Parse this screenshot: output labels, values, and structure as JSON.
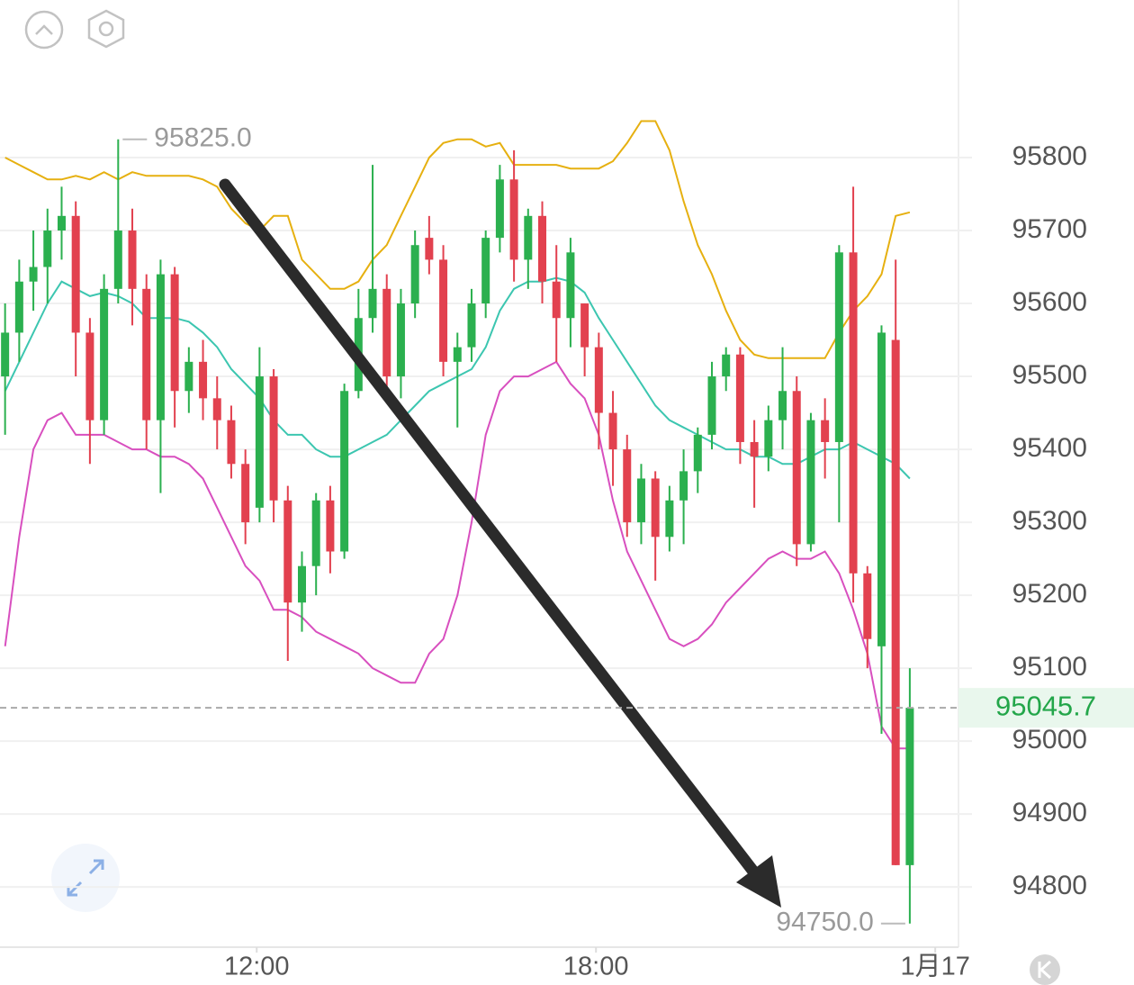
{
  "chart_data": {
    "type": "candlestick",
    "x": [
      7.55,
      7.8,
      8.05,
      8.3,
      8.55,
      8.8,
      9.05,
      9.3,
      9.55,
      9.8,
      10.05,
      10.3,
      10.55,
      10.8,
      11.05,
      11.3,
      11.55,
      11.8,
      12.05,
      12.3,
      12.55,
      12.8,
      13.05,
      13.3,
      13.55,
      13.8,
      14.05,
      14.3,
      14.55,
      14.8,
      15.05,
      15.3,
      15.55,
      15.8,
      16.05,
      16.3,
      16.55,
      16.8,
      17.05,
      17.3,
      17.55,
      17.8,
      18.05,
      18.3,
      18.55,
      18.8,
      19.05,
      19.3,
      19.55,
      19.8,
      20.05,
      20.3,
      20.55,
      20.8,
      21.05,
      21.3,
      21.55,
      21.8,
      22.05,
      22.3,
      22.55,
      22.8,
      23.05,
      23.3,
      23.55
    ],
    "open": [
      95500,
      95560,
      95630,
      95650,
      95700,
      95720,
      95560,
      95440,
      95620,
      95700,
      95620,
      95440,
      95640,
      95480,
      95520,
      95470,
      95440,
      95380,
      95320,
      95500,
      95330,
      95190,
      95240,
      95330,
      95260,
      95480,
      95580,
      95620,
      95500,
      95600,
      95690,
      95660,
      95520,
      95540,
      95600,
      95690,
      95770,
      95660,
      95720,
      95630,
      95580,
      95600,
      95540,
      95450,
      95400,
      95300,
      95360,
      95280,
      95330,
      95370,
      95420,
      95500,
      95530,
      95410,
      95390,
      95440,
      95480,
      95270,
      95440,
      95410,
      95670,
      95230,
      95130,
      95550,
      94830
    ],
    "high": [
      95600,
      95660,
      95700,
      95730,
      95760,
      95740,
      95580,
      95640,
      95825,
      95730,
      95640,
      95660,
      95650,
      95540,
      95550,
      95500,
      95460,
      95400,
      95540,
      95510,
      95350,
      95260,
      95340,
      95350,
      95490,
      95620,
      95790,
      95640,
      95620,
      95700,
      95720,
      95680,
      95560,
      95620,
      95700,
      95790,
      95810,
      95730,
      95740,
      95680,
      95690,
      95600,
      95560,
      95480,
      95420,
      95380,
      95370,
      95350,
      95400,
      95430,
      95520,
      95540,
      95540,
      95440,
      95460,
      95540,
      95500,
      95450,
      95470,
      95680,
      95760,
      95240,
      95570,
      95660,
      95100
    ],
    "low": [
      95420,
      95520,
      95590,
      95600,
      95660,
      95500,
      95380,
      95420,
      95600,
      95570,
      95400,
      95340,
      95430,
      95450,
      95440,
      95400,
      95360,
      95270,
      95300,
      95300,
      95110,
      95150,
      95200,
      95230,
      95250,
      95470,
      95560,
      95480,
      95470,
      95580,
      95640,
      95500,
      95430,
      95520,
      95580,
      95670,
      95630,
      95620,
      95600,
      95520,
      95540,
      95500,
      95400,
      95350,
      95280,
      95270,
      95220,
      95260,
      95270,
      95340,
      95400,
      95480,
      95380,
      95320,
      95370,
      95400,
      95240,
      95260,
      95360,
      95300,
      95190,
      95100,
      95010,
      94830,
      94750
    ],
    "close": [
      95560,
      95630,
      95650,
      95700,
      95720,
      95560,
      95440,
      95620,
      95700,
      95620,
      95440,
      95640,
      95480,
      95520,
      95470,
      95440,
      95380,
      95300,
      95500,
      95330,
      95190,
      95240,
      95330,
      95260,
      95480,
      95580,
      95620,
      95500,
      95600,
      95680,
      95660,
      95520,
      95540,
      95600,
      95690,
      95770,
      95660,
      95720,
      95630,
      95580,
      95670,
      95540,
      95450,
      95400,
      95300,
      95360,
      95280,
      95330,
      95370,
      95420,
      95500,
      95530,
      95410,
      95390,
      95440,
      95480,
      95270,
      95440,
      95410,
      95670,
      95230,
      95140,
      95560,
      94830,
      95045.7
    ],
    "up_color": "#2bb04f",
    "down_color": "#e2414f",
    "series": [
      {
        "color": "#e6b010",
        "values": [
          95800,
          95790,
          95780,
          95770,
          95770,
          95775,
          95770,
          95780,
          95770,
          95780,
          95775,
          95775,
          95775,
          95775,
          95770,
          95760,
          95730,
          95710,
          95700,
          95720,
          95720,
          95660,
          95640,
          95620,
          95620,
          95630,
          95660,
          95680,
          95720,
          95760,
          95800,
          95820,
          95825,
          95825,
          95815,
          95820,
          95790,
          95790,
          95790,
          95790,
          95785,
          95785,
          95785,
          95795,
          95820,
          95850,
          95850,
          95810,
          95740,
          95680,
          95640,
          95590,
          95550,
          95530,
          95525,
          95525,
          95525,
          95525,
          95525,
          95560,
          95590,
          95610,
          95640,
          95720,
          95725
        ]
      },
      {
        "color": "#3cc6b0",
        "values": [
          95480,
          95520,
          95560,
          95600,
          95630,
          95620,
          95610,
          95615,
          95610,
          95600,
          95580,
          95580,
          95580,
          95575,
          95560,
          95540,
          95510,
          95490,
          95470,
          95440,
          95420,
          95420,
          95400,
          95390,
          95390,
          95400,
          95410,
          95420,
          95440,
          95460,
          95480,
          95490,
          95500,
          95510,
          95540,
          95590,
          95620,
          95630,
          95630,
          95635,
          95630,
          95615,
          95580,
          95550,
          95520,
          95490,
          95460,
          95440,
          95430,
          95420,
          95410,
          95400,
          95400,
          95390,
          95390,
          95380,
          95380,
          95390,
          95400,
          95400,
          95410,
          95400,
          95390,
          95380,
          95360
        ]
      },
      {
        "color": "#d84fbf",
        "values": [
          95130,
          95280,
          95400,
          95440,
          95450,
          95420,
          95420,
          95420,
          95410,
          95400,
          95400,
          95390,
          95390,
          95380,
          95360,
          95320,
          95280,
          95240,
          95220,
          95180,
          95180,
          95170,
          95150,
          95140,
          95130,
          95120,
          95100,
          95090,
          95080,
          95080,
          95120,
          95140,
          95200,
          95300,
          95420,
          95480,
          95500,
          95500,
          95510,
          95520,
          95490,
          95470,
          95420,
          95330,
          95260,
          95220,
          95180,
          95140,
          95130,
          95140,
          95160,
          95190,
          95210,
          95230,
          95250,
          95260,
          95250,
          95250,
          95260,
          95230,
          95180,
          95120,
          95020,
          94990,
          94990
        ]
      }
    ],
    "xlim": [
      7.46,
      24.65
    ],
    "xticks": [
      {
        "value": 12,
        "label": "12:00"
      },
      {
        "value": 18,
        "label": "18:00"
      },
      {
        "value": 24,
        "label": "1月17"
      }
    ],
    "ylim": [
      94720,
      96016
    ],
    "yticks": [
      94800,
      94900,
      95000,
      95100,
      95200,
      95300,
      95400,
      95500,
      95600,
      95700,
      95800
    ],
    "grid": true,
    "last_price": 95045.7,
    "annotations": [
      {
        "value": 95825,
        "label": "95825.0",
        "x": 9.55
      },
      {
        "value": 94750,
        "label": "94750.0",
        "x": 23.55
      }
    ]
  }
}
